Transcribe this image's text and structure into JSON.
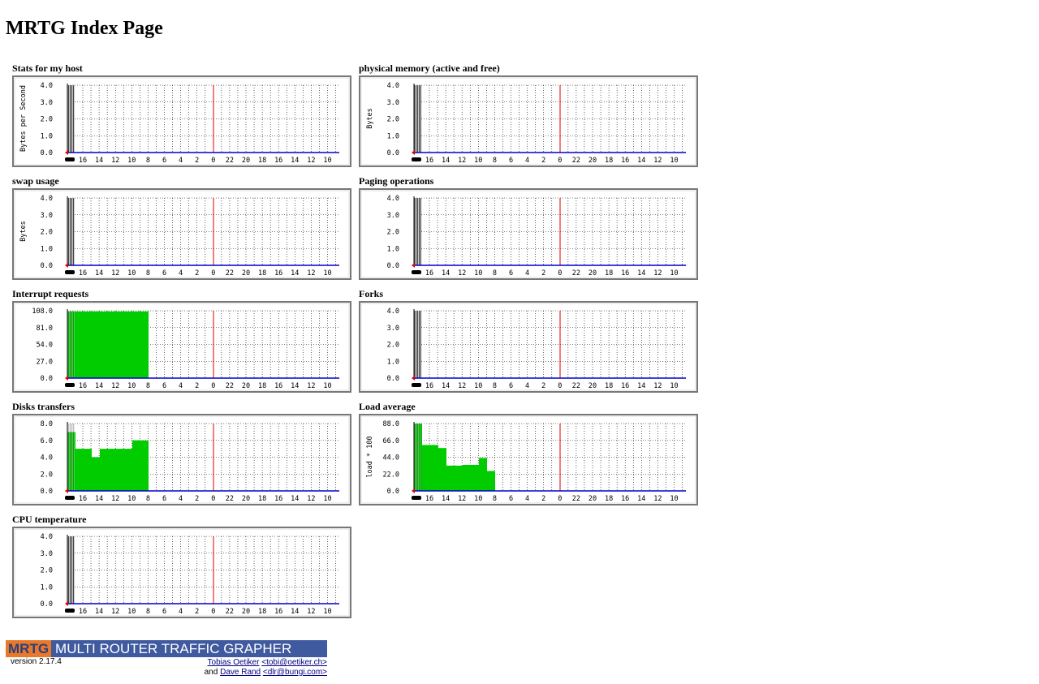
{
  "header": {
    "title": "MRTG Index Page"
  },
  "graphs": [
    {
      "title": "Stats for my host",
      "ylabel": "Bytes per Second",
      "ylim": [
        0,
        4
      ],
      "yticks": [
        {
          "value": 0,
          "label": "0.0"
        },
        {
          "value": 1,
          "label": "1.0"
        },
        {
          "value": 2,
          "label": "2.0"
        },
        {
          "value": 3,
          "label": "3.0"
        },
        {
          "value": 4,
          "label": "4.0"
        }
      ],
      "hour_labels": [
        16,
        14,
        12,
        10,
        8,
        6,
        4,
        2,
        0,
        22,
        20,
        18,
        16,
        14,
        12,
        10
      ]
    },
    {
      "title": "physical memory (active and free)",
      "ylabel": "Bytes",
      "ylim": [
        0,
        4
      ],
      "yticks": [
        {
          "value": 0,
          "label": "0.0"
        },
        {
          "value": 1,
          "label": "1.0"
        },
        {
          "value": 2,
          "label": "2.0"
        },
        {
          "value": 3,
          "label": "3.0"
        },
        {
          "value": 4,
          "label": "4.0"
        }
      ],
      "hour_labels": [
        16,
        14,
        12,
        10,
        8,
        6,
        4,
        2,
        0,
        22,
        20,
        18,
        16,
        14,
        12,
        10
      ]
    },
    {
      "title": "swap usage",
      "ylabel": "Bytes",
      "ylim": [
        0,
        4
      ],
      "yticks": [
        {
          "value": 0,
          "label": "0.0"
        },
        {
          "value": 1,
          "label": "1.0"
        },
        {
          "value": 2,
          "label": "2.0"
        },
        {
          "value": 3,
          "label": "3.0"
        },
        {
          "value": 4,
          "label": "4.0"
        }
      ],
      "hour_labels": [
        16,
        14,
        12,
        10,
        8,
        6,
        4,
        2,
        0,
        22,
        20,
        18,
        16,
        14,
        12,
        10
      ]
    },
    {
      "title": "Paging operations",
      "ylim": [
        0,
        4
      ],
      "yticks": [
        {
          "value": 0,
          "label": "0.0"
        },
        {
          "value": 1,
          "label": "1.0"
        },
        {
          "value": 2,
          "label": "2.0"
        },
        {
          "value": 3,
          "label": "3.0"
        },
        {
          "value": 4,
          "label": "4.0"
        }
      ],
      "hour_labels": [
        16,
        14,
        12,
        10,
        8,
        6,
        4,
        2,
        0,
        22,
        20,
        18,
        16,
        14,
        12,
        10
      ]
    },
    {
      "title": "Interrupt requests",
      "ylim": [
        0,
        108
      ],
      "yticks": [
        {
          "value": 0,
          "label": "0.0"
        },
        {
          "value": 27,
          "label": "27.0"
        },
        {
          "value": 54,
          "label": "54.0"
        },
        {
          "value": 81,
          "label": "81.0"
        },
        {
          "value": 108,
          "label": "108.0"
        }
      ],
      "hour_labels": [
        16,
        14,
        12,
        10,
        8,
        6,
        4,
        2,
        0,
        22,
        20,
        18,
        16,
        14,
        12,
        10
      ],
      "color": "#00cc00",
      "values": [
        107,
        107,
        107,
        107,
        107,
        107,
        107,
        107,
        107,
        107
      ]
    },
    {
      "title": "Forks",
      "ylim": [
        0,
        4
      ],
      "yticks": [
        {
          "value": 0,
          "label": "0.0"
        },
        {
          "value": 1,
          "label": "1.0"
        },
        {
          "value": 2,
          "label": "2.0"
        },
        {
          "value": 3,
          "label": "3.0"
        },
        {
          "value": 4,
          "label": "4.0"
        }
      ],
      "hour_labels": [
        16,
        14,
        12,
        10,
        8,
        6,
        4,
        2,
        0,
        22,
        20,
        18,
        16,
        14,
        12,
        10
      ]
    },
    {
      "title": "Disks transfers",
      "ylim": [
        0,
        8
      ],
      "yticks": [
        {
          "value": 0,
          "label": "0.0"
        },
        {
          "value": 2,
          "label": "2.0"
        },
        {
          "value": 4,
          "label": "4.0"
        },
        {
          "value": 6,
          "label": "6.0"
        },
        {
          "value": 8,
          "label": "8.0"
        }
      ],
      "hour_labels": [
        16,
        14,
        12,
        10,
        8,
        6,
        4,
        2,
        0,
        22,
        20,
        18,
        16,
        14,
        12,
        10
      ],
      "color": "#00cc00",
      "values": [
        7,
        5,
        5,
        4,
        5,
        5,
        5,
        5,
        6,
        6
      ]
    },
    {
      "title": "Load average",
      "ylabel": "load * 100",
      "ylim": [
        0,
        88
      ],
      "yticks": [
        {
          "value": 0,
          "label": "0.0"
        },
        {
          "value": 22,
          "label": "22.0"
        },
        {
          "value": 44,
          "label": "44.0"
        },
        {
          "value": 66,
          "label": "66.0"
        },
        {
          "value": 88,
          "label": "88.0"
        }
      ],
      "hour_labels": [
        16,
        14,
        12,
        10,
        8,
        6,
        4,
        2,
        0,
        22,
        20,
        18,
        16,
        14,
        12,
        10
      ],
      "color": "#00cc00",
      "values": [
        88,
        60,
        60,
        56,
        33,
        33,
        34,
        34,
        43,
        26
      ]
    },
    {
      "title": "CPU temperature",
      "ylim": [
        0,
        4
      ],
      "yticks": [
        {
          "value": 0,
          "label": "0.0"
        },
        {
          "value": 1,
          "label": "1.0"
        },
        {
          "value": 2,
          "label": "2.0"
        },
        {
          "value": 3,
          "label": "3.0"
        },
        {
          "value": 4,
          "label": "4.0"
        }
      ],
      "hour_labels": [
        16,
        14,
        12,
        10,
        8,
        6,
        4,
        2,
        0,
        22,
        20,
        18,
        16,
        14,
        12,
        10
      ]
    }
  ],
  "footer": {
    "logo": "MRTG",
    "banner": "MULTI ROUTER TRAFFIC GRAPHER",
    "version": "version 2.17.4",
    "author1": "Tobias Oetiker",
    "email1": "<tobi@oetiker.ch>",
    "and": "and",
    "author2": "Dave Rand",
    "email2": "<dlr@bungi.com>"
  }
}
